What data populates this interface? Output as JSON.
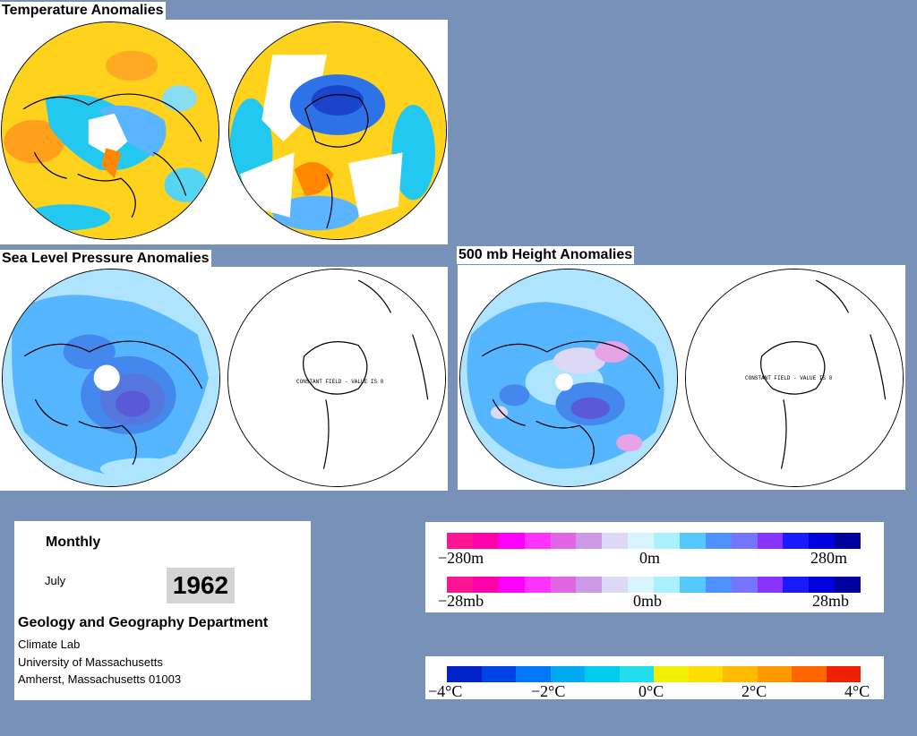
{
  "titles": {
    "temperature": "Temperature Anomalies",
    "slp": "Sea Level Pressure Anomalies",
    "height500": "500 mb Height Anomalies"
  },
  "constant_field_text": "CONSTANT FIELD - VALUE IS 0",
  "info": {
    "period": "Monthly",
    "month": "July",
    "year": "1962",
    "department": "Geology and Geography Department",
    "lab": "Climate Lab",
    "university": "University of Massachusetts",
    "address": "Amherst, Massachusetts 01003"
  },
  "scales": {
    "height": {
      "left": "−280m",
      "center": "0m",
      "right": "280m"
    },
    "pressure": {
      "left": "−28mb",
      "center": "0mb",
      "right": "28mb"
    },
    "temperature": {
      "t1": "−4°C",
      "t2": "−2°C",
      "t3": "0°C",
      "t4": "2°C",
      "t5": "4°C"
    }
  },
  "colors": {
    "background": "#7891b9",
    "anomaly_scale": [
      "#ff1493",
      "#ff00aa",
      "#ff00ff",
      "#ff33ff",
      "#e066e6",
      "#cc99e6",
      "#ddd8f5",
      "#d8f5ff",
      "#aaf0ff",
      "#55c8ff",
      "#4f92ff",
      "#7575ff",
      "#8833ff",
      "#1a1aff",
      "#0000dd",
      "#00009f"
    ],
    "temperature_scale": [
      "#0022c8",
      "#0044e8",
      "#0077f5",
      "#00aaf0",
      "#00ccee",
      "#22ddee",
      "#f0f000",
      "#ffdd00",
      "#ffbb00",
      "#ff9900",
      "#ff6600",
      "#ee2200"
    ]
  }
}
